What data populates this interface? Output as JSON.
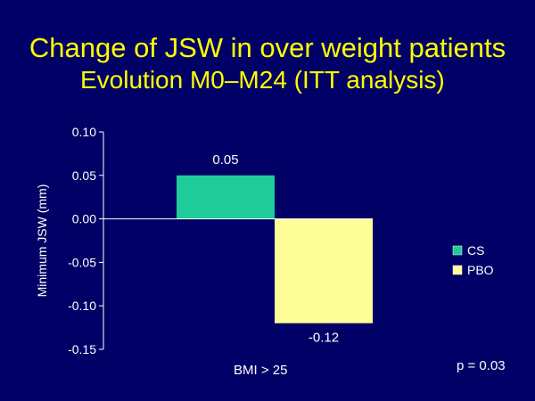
{
  "slide": {
    "title": "Change of JSW in over weight patients",
    "subtitle": "Evolution  M0–M24  (ITT analysis)",
    "p_value": "p = 0.03"
  },
  "colors": {
    "background": "#000066",
    "title": "#ffff00",
    "cs": "#1fcc99",
    "pbo": "#ffff99"
  },
  "chart_data": {
    "type": "bar",
    "categories": [
      "BMI > 25"
    ],
    "series": [
      {
        "name": "CS",
        "values": [
          0.05
        ],
        "color": "#1fcc99",
        "label": "0.05"
      },
      {
        "name": "PBO",
        "values": [
          -0.12
        ],
        "color": "#ffff99",
        "label": "-0.12"
      }
    ],
    "ylabel": "Minimum  JSW  (mm)",
    "ylim": [
      -0.15,
      0.1
    ],
    "yticks": [
      0.1,
      0.05,
      0.0,
      -0.05,
      -0.1,
      -0.15
    ],
    "ytick_labels": [
      "0.10",
      "0.05",
      "0.00",
      "-0.05",
      "-0.10",
      "-0.15"
    ],
    "legend": "right",
    "grid": false
  }
}
